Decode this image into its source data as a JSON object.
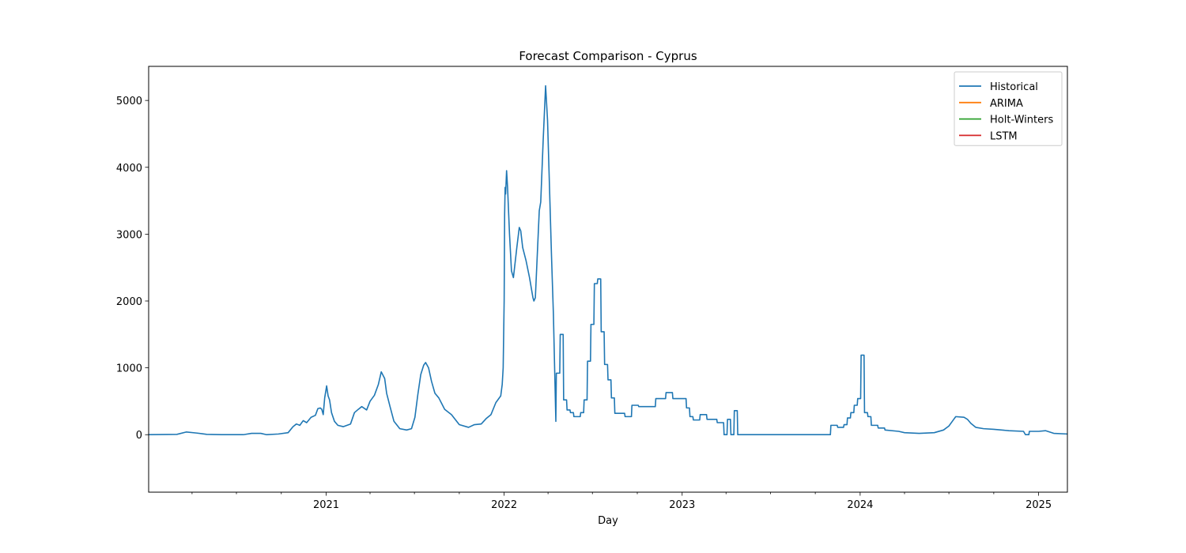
{
  "chart_data": {
    "type": "line",
    "title": "Forecast Comparison - Cyprus",
    "xlabel": "Day",
    "ylabel": "",
    "x_axis": "date",
    "xlim": [
      "2020-01-03",
      "2025-03-01"
    ],
    "ylim": [
      -860,
      5510
    ],
    "grid": false,
    "legend_position": "top-right",
    "x_ticks": [
      {
        "date": "2021-01-01",
        "label": "2021"
      },
      {
        "date": "2022-01-01",
        "label": "2022"
      },
      {
        "date": "2023-01-01",
        "label": "2023"
      },
      {
        "date": "2024-01-01",
        "label": "2024"
      },
      {
        "date": "2025-01-01",
        "label": "2025"
      }
    ],
    "x_minor_ticks": [
      "2020-01-01",
      "2020-04-01",
      "2020-07-01",
      "2020-10-01",
      "2021-04-01",
      "2021-07-01",
      "2021-10-01",
      "2022-04-01",
      "2022-07-01",
      "2022-10-01",
      "2023-04-01",
      "2023-07-01",
      "2023-10-01",
      "2024-04-01",
      "2024-07-01",
      "2024-10-01"
    ],
    "y_ticks": [
      0,
      1000,
      2000,
      3000,
      4000,
      5000
    ],
    "series": [
      {
        "name": "Historical",
        "color": "#1f77b4",
        "points": [
          [
            "2020-01-03",
            0
          ],
          [
            "2020-03-01",
            5
          ],
          [
            "2020-03-20",
            40
          ],
          [
            "2020-04-10",
            25
          ],
          [
            "2020-05-01",
            5
          ],
          [
            "2020-06-01",
            0
          ],
          [
            "2020-07-15",
            0
          ],
          [
            "2020-08-01",
            20
          ],
          [
            "2020-08-20",
            20
          ],
          [
            "2020-09-01",
            0
          ],
          [
            "2020-09-25",
            10
          ],
          [
            "2020-10-15",
            30
          ],
          [
            "2020-10-25",
            120
          ],
          [
            "2020-11-01",
            160
          ],
          [
            "2020-11-08",
            140
          ],
          [
            "2020-11-15",
            210
          ],
          [
            "2020-11-22",
            180
          ],
          [
            "2020-12-01",
            260
          ],
          [
            "2020-12-10",
            290
          ],
          [
            "2020-12-15",
            390
          ],
          [
            "2020-12-20",
            400
          ],
          [
            "2020-12-23",
            380
          ],
          [
            "2020-12-26",
            300
          ],
          [
            "2020-12-29",
            550
          ],
          [
            "2021-01-02",
            730
          ],
          [
            "2021-01-05",
            580
          ],
          [
            "2021-01-08",
            520
          ],
          [
            "2021-01-12",
            330
          ],
          [
            "2021-01-18",
            200
          ],
          [
            "2021-01-25",
            140
          ],
          [
            "2021-02-05",
            120
          ],
          [
            "2021-02-20",
            160
          ],
          [
            "2021-02-28",
            330
          ],
          [
            "2021-03-08",
            380
          ],
          [
            "2021-03-15",
            420
          ],
          [
            "2021-03-25",
            370
          ],
          [
            "2021-04-01",
            500
          ],
          [
            "2021-04-10",
            590
          ],
          [
            "2021-04-18",
            750
          ],
          [
            "2021-04-24",
            940
          ],
          [
            "2021-05-01",
            840
          ],
          [
            "2021-05-05",
            620
          ],
          [
            "2021-05-12",
            420
          ],
          [
            "2021-05-20",
            200
          ],
          [
            "2021-06-01",
            90
          ],
          [
            "2021-06-15",
            70
          ],
          [
            "2021-06-25",
            90
          ],
          [
            "2021-07-02",
            260
          ],
          [
            "2021-07-08",
            600
          ],
          [
            "2021-07-14",
            900
          ],
          [
            "2021-07-20",
            1040
          ],
          [
            "2021-07-24",
            1080
          ],
          [
            "2021-07-30",
            1000
          ],
          [
            "2021-08-05",
            800
          ],
          [
            "2021-08-12",
            620
          ],
          [
            "2021-08-20",
            550
          ],
          [
            "2021-09-01",
            380
          ],
          [
            "2021-09-15",
            300
          ],
          [
            "2021-10-01",
            150
          ],
          [
            "2021-10-20",
            110
          ],
          [
            "2021-11-01",
            150
          ],
          [
            "2021-11-15",
            160
          ],
          [
            "2021-11-25",
            240
          ],
          [
            "2021-12-05",
            300
          ],
          [
            "2021-12-15",
            480
          ],
          [
            "2021-12-25",
            580
          ],
          [
            "2021-12-28",
            750
          ],
          [
            "2021-12-30",
            1000
          ],
          [
            "2022-01-01",
            2000
          ],
          [
            "2022-01-02",
            3300
          ],
          [
            "2022-01-03",
            3700
          ],
          [
            "2022-01-04",
            3600
          ],
          [
            "2022-01-06",
            3950
          ],
          [
            "2022-01-08",
            3700
          ],
          [
            "2022-01-12",
            3000
          ],
          [
            "2022-01-16",
            2450
          ],
          [
            "2022-01-20",
            2350
          ],
          [
            "2022-01-27",
            2800
          ],
          [
            "2022-02-01",
            3100
          ],
          [
            "2022-02-04",
            3050
          ],
          [
            "2022-02-08",
            2800
          ],
          [
            "2022-02-15",
            2600
          ],
          [
            "2022-02-22",
            2350
          ],
          [
            "2022-03-01",
            2050
          ],
          [
            "2022-03-03",
            2000
          ],
          [
            "2022-03-06",
            2050
          ],
          [
            "2022-03-10",
            2700
          ],
          [
            "2022-03-14",
            3350
          ],
          [
            "2022-03-17",
            3480
          ],
          [
            "2022-03-22",
            4400
          ],
          [
            "2022-03-27",
            5220
          ],
          [
            "2022-03-31",
            4700
          ],
          [
            "2022-04-04",
            3700
          ],
          [
            "2022-04-08",
            2700
          ],
          [
            "2022-04-12",
            1800
          ],
          [
            "2022-04-17",
            200
          ],
          [
            "2022-04-18",
            920
          ],
          [
            "2022-04-25",
            920
          ],
          [
            "2022-04-26",
            1500
          ],
          [
            "2022-05-02",
            1500
          ],
          [
            "2022-05-03",
            520
          ],
          [
            "2022-05-09",
            520
          ],
          [
            "2022-05-10",
            370
          ],
          [
            "2022-05-16",
            370
          ],
          [
            "2022-05-17",
            330
          ],
          [
            "2022-05-23",
            330
          ],
          [
            "2022-05-24",
            270
          ],
          [
            "2022-06-06",
            270
          ],
          [
            "2022-06-07",
            330
          ],
          [
            "2022-06-13",
            330
          ],
          [
            "2022-06-14",
            520
          ],
          [
            "2022-06-20",
            520
          ],
          [
            "2022-06-21",
            1100
          ],
          [
            "2022-06-27",
            1100
          ],
          [
            "2022-06-28",
            1650
          ],
          [
            "2022-07-04",
            1650
          ],
          [
            "2022-07-05",
            2260
          ],
          [
            "2022-07-11",
            2260
          ],
          [
            "2022-07-12",
            2330
          ],
          [
            "2022-07-18",
            2330
          ],
          [
            "2022-07-19",
            1540
          ],
          [
            "2022-07-25",
            1540
          ],
          [
            "2022-07-26",
            1050
          ],
          [
            "2022-08-01",
            1050
          ],
          [
            "2022-08-02",
            820
          ],
          [
            "2022-08-08",
            820
          ],
          [
            "2022-08-09",
            550
          ],
          [
            "2022-08-15",
            550
          ],
          [
            "2022-08-16",
            320
          ],
          [
            "2022-09-05",
            320
          ],
          [
            "2022-09-06",
            270
          ],
          [
            "2022-09-19",
            270
          ],
          [
            "2022-09-20",
            440
          ],
          [
            "2022-10-03",
            440
          ],
          [
            "2022-10-04",
            420
          ],
          [
            "2022-11-07",
            420
          ],
          [
            "2022-11-08",
            540
          ],
          [
            "2022-11-28",
            540
          ],
          [
            "2022-11-29",
            630
          ],
          [
            "2022-12-12",
            630
          ],
          [
            "2022-12-13",
            540
          ],
          [
            "2022-12-26",
            540
          ],
          [
            "2022-12-27",
            540
          ],
          [
            "2023-01-09",
            540
          ],
          [
            "2023-01-10",
            400
          ],
          [
            "2023-01-16",
            400
          ],
          [
            "2023-01-17",
            270
          ],
          [
            "2023-01-23",
            270
          ],
          [
            "2023-01-24",
            220
          ],
          [
            "2023-02-06",
            220
          ],
          [
            "2023-02-07",
            300
          ],
          [
            "2023-02-20",
            300
          ],
          [
            "2023-02-21",
            230
          ],
          [
            "2023-03-13",
            230
          ],
          [
            "2023-03-14",
            180
          ],
          [
            "2023-03-27",
            180
          ],
          [
            "2023-03-28",
            0
          ],
          [
            "2023-04-03",
            0
          ],
          [
            "2023-04-04",
            230
          ],
          [
            "2023-04-10",
            230
          ],
          [
            "2023-04-11",
            0
          ],
          [
            "2023-04-17",
            0
          ],
          [
            "2023-04-18",
            360
          ],
          [
            "2023-04-24",
            360
          ],
          [
            "2023-04-25",
            0
          ],
          [
            "2023-11-01",
            0
          ],
          [
            "2023-11-02",
            140
          ],
          [
            "2023-11-15",
            140
          ],
          [
            "2023-11-16",
            110
          ],
          [
            "2023-11-28",
            110
          ],
          [
            "2023-11-29",
            150
          ],
          [
            "2023-12-05",
            150
          ],
          [
            "2023-12-06",
            250
          ],
          [
            "2023-12-12",
            250
          ],
          [
            "2023-12-13",
            330
          ],
          [
            "2023-12-19",
            330
          ],
          [
            "2023-12-20",
            440
          ],
          [
            "2023-12-26",
            440
          ],
          [
            "2023-12-27",
            540
          ],
          [
            "2024-01-02",
            540
          ],
          [
            "2024-01-03",
            1190
          ],
          [
            "2024-01-09",
            1190
          ],
          [
            "2024-01-10",
            330
          ],
          [
            "2024-01-16",
            330
          ],
          [
            "2024-01-17",
            270
          ],
          [
            "2024-01-23",
            270
          ],
          [
            "2024-01-24",
            140
          ],
          [
            "2024-02-06",
            140
          ],
          [
            "2024-02-07",
            100
          ],
          [
            "2024-02-20",
            100
          ],
          [
            "2024-02-21",
            70
          ],
          [
            "2024-03-20",
            50
          ],
          [
            "2024-04-01",
            30
          ],
          [
            "2024-05-01",
            20
          ],
          [
            "2024-06-01",
            30
          ],
          [
            "2024-06-20",
            70
          ],
          [
            "2024-07-01",
            130
          ],
          [
            "2024-07-08",
            200
          ],
          [
            "2024-07-15",
            270
          ],
          [
            "2024-08-01",
            260
          ],
          [
            "2024-08-08",
            230
          ],
          [
            "2024-08-15",
            170
          ],
          [
            "2024-08-25",
            110
          ],
          [
            "2024-09-10",
            90
          ],
          [
            "2024-10-01",
            80
          ],
          [
            "2024-11-01",
            60
          ],
          [
            "2024-12-01",
            50
          ],
          [
            "2024-12-05",
            0
          ],
          [
            "2024-12-12",
            0
          ],
          [
            "2024-12-13",
            50
          ],
          [
            "2025-01-01",
            50
          ],
          [
            "2025-01-15",
            60
          ],
          [
            "2025-02-01",
            20
          ],
          [
            "2025-03-01",
            10
          ]
        ]
      },
      {
        "name": "ARIMA",
        "color": "#ff7f0e",
        "points": []
      },
      {
        "name": "Holt-Winters",
        "color": "#2ca02c",
        "points": []
      },
      {
        "name": "LSTM",
        "color": "#d62728",
        "points": []
      }
    ]
  }
}
